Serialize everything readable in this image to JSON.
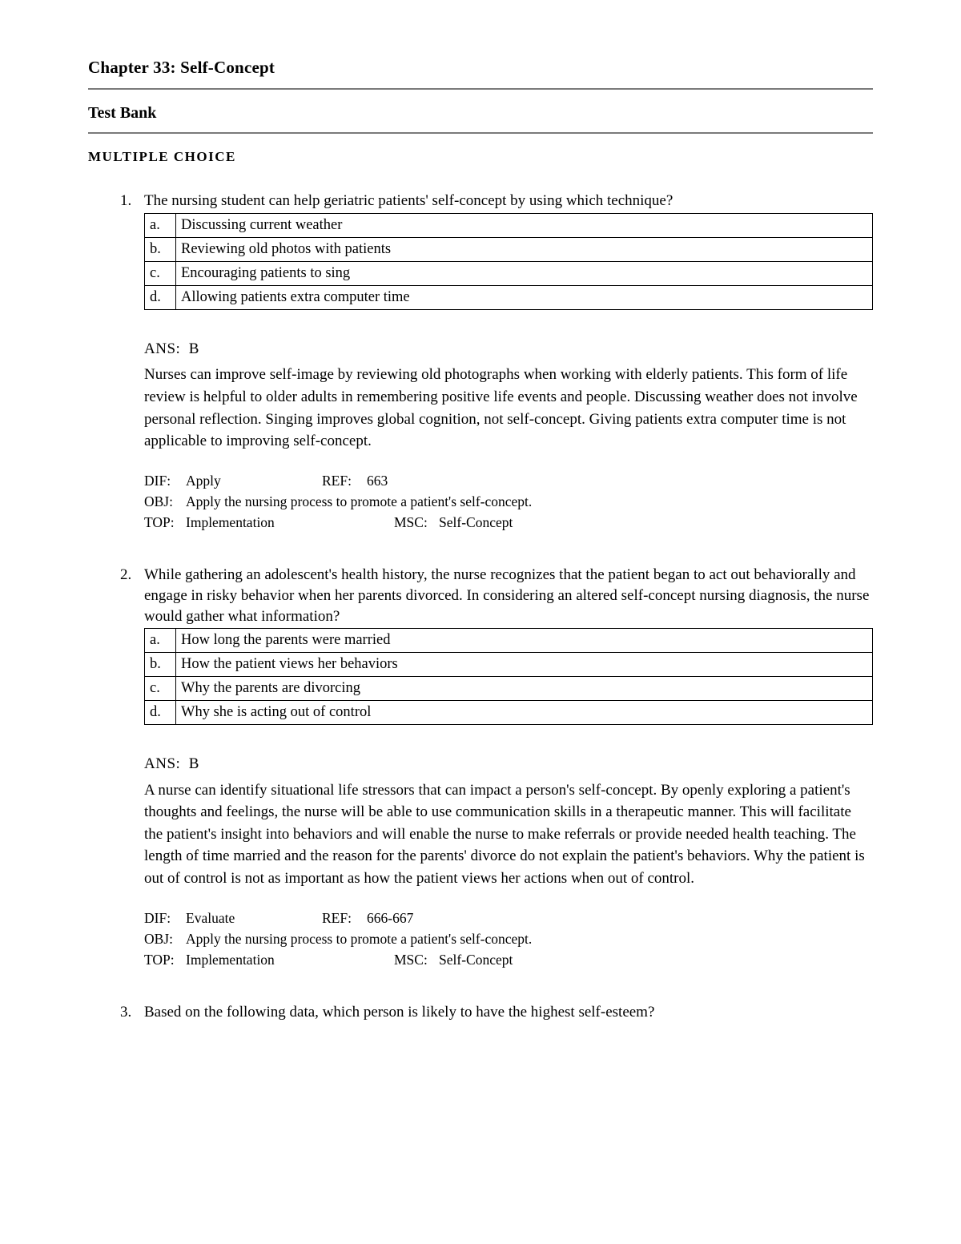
{
  "chapter_title": "Chapter 33: Self-Concept",
  "test_bank_label": "Test Bank",
  "section_label": "MULTIPLE CHOICE",
  "questions": [
    {
      "number": "1.",
      "stem": "The nursing student can help geriatric patients' self-concept by using which technique?",
      "options": [
        {
          "letter": "a.",
          "text": "Discussing current weather"
        },
        {
          "letter": "b.",
          "text": "Reviewing old photos with patients"
        },
        {
          "letter": "c.",
          "text": "Encouraging patients to sing"
        },
        {
          "letter": "d.",
          "text": "Allowing patients extra computer time"
        }
      ],
      "answer_label": "ANS:",
      "answer": "B",
      "rationale": "Nurses can improve self-image by reviewing old photographs when working with elderly patients. This form of life review is helpful to older adults in remembering positive life events and people. Discussing weather does not involve personal reflection. Singing improves global cognition, not self-concept. Giving patients extra computer time is not applicable to improving self-concept.",
      "meta": {
        "dif_label": "DIF:",
        "dif": "Apply",
        "ref_label": "REF:",
        "ref": "663",
        "obj_label": "OBJ:",
        "obj": "Apply the nursing process to promote a patient's self-concept.",
        "top_label": "TOP:",
        "top": "Implementation",
        "msc_label": "MSC:",
        "msc": "Self-Concept"
      }
    },
    {
      "number": "2.",
      "stem": "While gathering an adolescent's health history, the nurse recognizes that the patient began to act out behaviorally and engage in risky behavior when her parents divorced. In considering an altered self-concept nursing diagnosis, the nurse would gather what information?",
      "options": [
        {
          "letter": "a.",
          "text": "How long the parents were married"
        },
        {
          "letter": "b.",
          "text": "How the patient views her behaviors"
        },
        {
          "letter": "c.",
          "text": "Why the parents are divorcing"
        },
        {
          "letter": "d.",
          "text": "Why she is acting out of control"
        }
      ],
      "answer_label": "ANS:",
      "answer": "B",
      "rationale": "A nurse can identify situational life stressors that can impact a person's self-concept. By openly exploring a patient's thoughts and feelings, the nurse will be able to use communication skills in a therapeutic manner. This will facilitate the patient's insight into behaviors and will enable the nurse to make referrals or provide needed health teaching. The length of time married and the reason for the parents' divorce do not explain the patient's behaviors. Why the patient is out of control is not as important as how the patient views her actions when out of control.",
      "meta": {
        "dif_label": "DIF:",
        "dif": "Evaluate",
        "ref_label": "REF:",
        "ref": "666-667",
        "obj_label": "OBJ:",
        "obj": "Apply the nursing process to promote a patient's self-concept.",
        "top_label": "TOP:",
        "top": "Implementation",
        "msc_label": "MSC:",
        "msc": "Self-Concept"
      }
    },
    {
      "number": "3.",
      "stem": "Based on the following data, which person is likely to have the highest self-esteem?"
    }
  ]
}
